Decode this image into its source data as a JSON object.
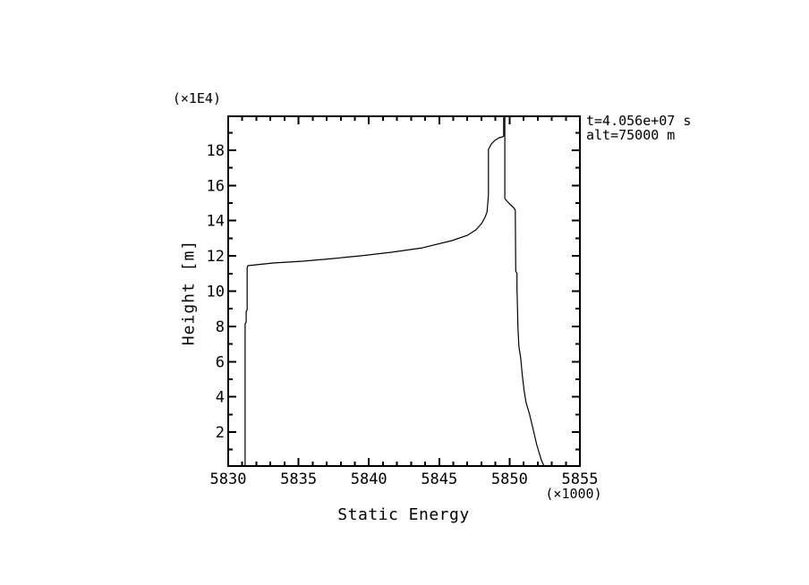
{
  "page": {
    "background": "#ffffff",
    "foreground": "#000000"
  },
  "chart_data": {
    "type": "line",
    "title": "",
    "xlabel": "Static Energy",
    "ylabel": "Height [m]",
    "x_scale_label": "(×1000)",
    "y_scale_label": "(×1E4)",
    "annotation": {
      "line1": "t=4.056e+07 s",
      "line2": "alt=75000 m"
    },
    "xlim": [
      5830,
      5855
    ],
    "ylim": [
      0.07,
      19.93
    ],
    "grid": false,
    "legend_position": "none",
    "xticks_major": [
      5830,
      5835,
      5840,
      5845,
      5850,
      5855
    ],
    "xticks_minor": [
      5831,
      5832,
      5833,
      5834,
      5836,
      5837,
      5838,
      5839,
      5841,
      5842,
      5843,
      5844,
      5846,
      5847,
      5848,
      5849,
      5851,
      5852,
      5853,
      5854
    ],
    "yticks_major": [
      2,
      4,
      6,
      8,
      10,
      12,
      14,
      16,
      18
    ],
    "yticks_minor": [
      1,
      3,
      5,
      7,
      9,
      11,
      13,
      15,
      17,
      19
    ],
    "line_color": "#000000",
    "series": [
      {
        "name": "left-profile",
        "color": "#000000",
        "points": [
          [
            5831.2,
            0.07
          ],
          [
            5831.2,
            8.15
          ],
          [
            5831.28,
            8.25
          ],
          [
            5831.28,
            8.85
          ],
          [
            5831.35,
            8.95
          ],
          [
            5831.35,
            11.35
          ],
          [
            5831.4,
            11.45
          ],
          [
            5833.2,
            11.6
          ],
          [
            5835.3,
            11.7
          ],
          [
            5837.4,
            11.85
          ],
          [
            5839.5,
            12.01
          ],
          [
            5841.6,
            12.21
          ],
          [
            5843.8,
            12.46
          ],
          [
            5845.9,
            12.87
          ],
          [
            5847.0,
            13.17
          ],
          [
            5847.6,
            13.48
          ],
          [
            5848.0,
            13.83
          ],
          [
            5848.25,
            14.19
          ],
          [
            5848.4,
            14.49
          ],
          [
            5848.45,
            14.95
          ],
          [
            5848.5,
            15.46
          ],
          [
            5848.5,
            18.05
          ],
          [
            5848.7,
            18.35
          ],
          [
            5848.95,
            18.56
          ],
          [
            5849.25,
            18.71
          ],
          [
            5849.5,
            18.76
          ],
          [
            5849.58,
            18.8
          ],
          [
            5849.58,
            19.93
          ]
        ]
      },
      {
        "name": "right-profile",
        "color": "#000000",
        "points": [
          [
            5849.66,
            19.93
          ],
          [
            5849.66,
            15.26
          ],
          [
            5849.78,
            15.15
          ],
          [
            5850.0,
            14.95
          ],
          [
            5850.28,
            14.75
          ],
          [
            5850.41,
            14.6
          ],
          [
            5850.44,
            11.14
          ],
          [
            5850.53,
            11.0
          ],
          [
            5850.53,
            10.13
          ],
          [
            5850.56,
            9.11
          ],
          [
            5850.6,
            7.89
          ],
          [
            5850.66,
            6.88
          ],
          [
            5850.79,
            6.22
          ],
          [
            5850.91,
            5.2
          ],
          [
            5851.04,
            4.34
          ],
          [
            5851.17,
            3.68
          ],
          [
            5851.42,
            3.02
          ],
          [
            5851.68,
            2.15
          ],
          [
            5851.93,
            1.29
          ],
          [
            5852.25,
            0.43
          ],
          [
            5852.44,
            0.07
          ]
        ]
      }
    ]
  }
}
